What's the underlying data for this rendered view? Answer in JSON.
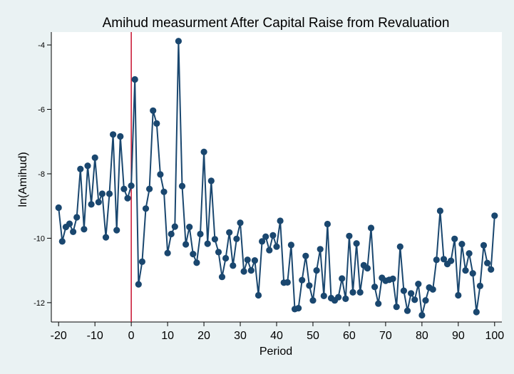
{
  "chart_data": {
    "type": "line",
    "title": "Amihud measurment  After Capital Raise from Revaluation",
    "xlabel": "Period",
    "ylabel": "ln(Amihud)",
    "xlim": [
      -22,
      102
    ],
    "ylim": [
      -12.6,
      -3.6
    ],
    "xticks": [
      -20,
      -10,
      0,
      10,
      20,
      30,
      40,
      50,
      60,
      70,
      80,
      90,
      100
    ],
    "xtick_labels": [
      "-20",
      "-10",
      "0",
      "10",
      "20",
      "30",
      "40",
      "50",
      "60",
      "70",
      "80",
      "90",
      "100"
    ],
    "yticks": [
      -4,
      -6,
      -8,
      -10,
      -12
    ],
    "ytick_labels": [
      "-4",
      "-6",
      "-8",
      "-10",
      "-12"
    ],
    "grid": false,
    "legend": "none",
    "reference_line": {
      "x": 0,
      "color": "#c8102e"
    },
    "colors": {
      "series": "#1a476f",
      "background": "#eaf2f3",
      "plot_background": "#ffffff"
    },
    "series": [
      {
        "x": [
          -20,
          -19,
          -18,
          -17,
          -16,
          -15,
          -14,
          -13,
          -12,
          -11,
          -10,
          -9,
          -8,
          -7,
          -6,
          -5,
          -4,
          -3,
          -2,
          -1,
          0,
          1,
          2,
          3,
          4,
          5,
          6,
          7,
          8,
          9,
          10,
          11,
          12,
          13,
          14,
          15,
          16,
          17,
          18,
          19,
          20,
          21,
          22,
          23,
          24,
          25,
          26,
          27,
          28,
          29,
          30,
          31,
          32,
          33,
          34,
          35,
          36,
          37,
          38,
          39,
          40,
          41,
          42,
          43,
          44,
          45,
          46,
          47,
          48,
          49,
          50,
          51,
          52,
          53,
          54,
          55,
          56,
          57,
          58,
          59,
          60,
          61,
          62,
          63,
          64,
          65,
          66,
          67,
          68,
          69,
          70,
          71,
          72,
          73,
          74,
          75,
          76,
          77,
          78,
          79,
          80,
          81,
          82,
          83,
          84,
          85,
          86,
          87,
          88,
          89,
          90,
          91,
          92,
          93,
          94,
          95,
          96,
          97,
          98,
          99,
          100
        ],
        "values": [
          -9.05,
          -10.1,
          -9.65,
          -9.55,
          -9.8,
          -9.35,
          -7.85,
          -9.72,
          -7.75,
          -8.95,
          -7.5,
          -8.88,
          -8.62,
          -9.97,
          -8.62,
          -6.78,
          -9.75,
          -6.84,
          -8.47,
          -8.76,
          -8.37,
          -5.07,
          -11.43,
          -10.73,
          -9.08,
          -8.47,
          -6.04,
          -6.44,
          -8.02,
          -8.56,
          -10.46,
          -9.87,
          -9.64,
          -3.88,
          -8.38,
          -10.19,
          -9.65,
          -10.49,
          -10.76,
          -9.87,
          -7.32,
          -10.17,
          -8.22,
          -10.03,
          -10.43,
          -11.2,
          -10.62,
          -9.82,
          -10.85,
          -10.02,
          -9.52,
          -11.03,
          -10.67,
          -11.0,
          -10.69,
          -11.77,
          -10.1,
          -9.95,
          -10.37,
          -9.91,
          -10.26,
          -9.46,
          -11.38,
          -11.37,
          -10.21,
          -12.2,
          -12.17,
          -11.3,
          -10.55,
          -11.47,
          -11.93,
          -11.0,
          -10.34,
          -11.79,
          -9.56,
          -11.86,
          -11.93,
          -11.83,
          -11.25,
          -11.88,
          -9.93,
          -11.68,
          -10.16,
          -11.68,
          -10.84,
          -10.93,
          -9.68,
          -11.51,
          -12.03,
          -11.23,
          -11.32,
          -11.29,
          -11.26,
          -12.13,
          -10.26,
          -11.63,
          -12.25,
          -11.71,
          -11.91,
          -11.42,
          -12.39,
          -11.93,
          -11.53,
          -11.59,
          -10.67,
          -9.15,
          -10.65,
          -10.8,
          -10.7,
          -10.02,
          -11.77,
          -10.18,
          -11.0,
          -10.47,
          -11.09,
          -12.29,
          -11.48,
          -10.22,
          -10.77,
          -10.97,
          -9.3
        ]
      }
    ]
  }
}
